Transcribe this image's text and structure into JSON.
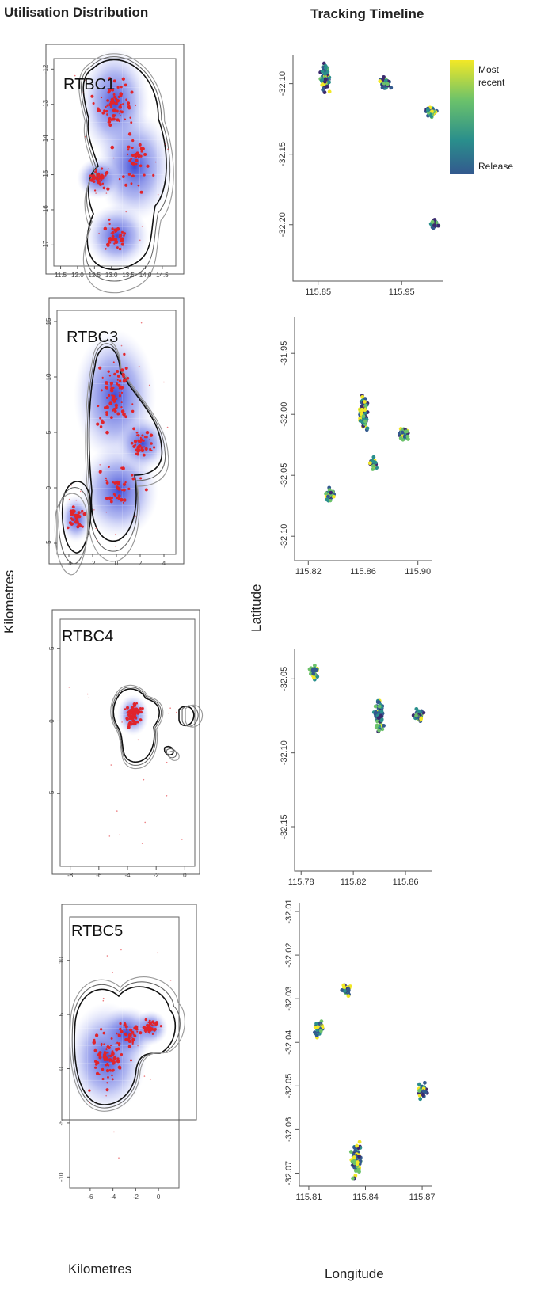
{
  "headers": {
    "left": "Utilisation Distribution",
    "right": "Tracking Timeline"
  },
  "axis_titles": {
    "left_y": "Kilometres",
    "left_x": "Kilometres",
    "right_y": "Latitude",
    "right_x": "Longitude"
  },
  "legend": {
    "top": "Most recent",
    "bottom": "Release",
    "colors": [
      "#f2e826",
      "#6cc26a",
      "#2a8f8c",
      "#33598e",
      "#3b2a6e"
    ]
  },
  "colors": {
    "kernel": "#3f4fd6",
    "points": "#e0242c",
    "contour": "#333333"
  },
  "chart_data": [
    {
      "type": "scatter",
      "panel": "utilisation-distribution",
      "title": "RTBC1",
      "xticks": [
        "11.5",
        "12.0",
        "12.5",
        "13.0",
        "13.5",
        "14.0",
        "14.5"
      ],
      "yticks": [
        "-12",
        "-13",
        "-14",
        "-15",
        "-16",
        "-17"
      ],
      "xlim": [
        11.3,
        14.9
      ],
      "ylim": [
        -17.6,
        -11.7
      ],
      "contours": [
        "50",
        "95",
        "99"
      ]
    },
    {
      "type": "scatter",
      "panel": "tracking-timeline",
      "xticks": [
        "115.85",
        "115.95"
      ],
      "yticks": [
        "-32.10",
        "-32.15",
        "-32.20"
      ],
      "xlim": [
        115.82,
        116.0
      ],
      "ylim": [
        -32.24,
        -32.08
      ],
      "clusters": [
        {
          "x": 115.858,
          "y": -32.095
        },
        {
          "x": 115.93,
          "y": -32.1
        },
        {
          "x": 115.985,
          "y": -32.12
        },
        {
          "x": 115.99,
          "y": -32.2
        }
      ]
    },
    {
      "type": "scatter",
      "panel": "utilisation-distribution",
      "title": "RTBC3",
      "xticks": [
        "-4",
        "-2",
        "0",
        "2",
        "4"
      ],
      "yticks": [
        "15",
        "10",
        "5",
        "0",
        "-5"
      ],
      "xlim": [
        -5,
        5
      ],
      "ylim": [
        -6,
        16
      ],
      "contours": [
        "50",
        "95",
        "99"
      ]
    },
    {
      "type": "scatter",
      "panel": "tracking-timeline",
      "xticks": [
        "115.82",
        "115.86",
        "115.90"
      ],
      "yticks": [
        "-31.95",
        "-32.00",
        "-32.05",
        "-32.10"
      ],
      "xlim": [
        115.81,
        115.91
      ],
      "ylim": [
        -32.12,
        -31.92
      ],
      "clusters": [
        {
          "x": 115.86,
          "y": -32.0
        },
        {
          "x": 115.867,
          "y": -32.04
        },
        {
          "x": 115.89,
          "y": -32.015
        },
        {
          "x": 115.835,
          "y": -32.065
        }
      ]
    },
    {
      "type": "scatter",
      "panel": "utilisation-distribution",
      "title": "RTBC4",
      "xticks": [
        "-8",
        "-6",
        "-4",
        "-2",
        "0"
      ],
      "yticks": [
        "5",
        "0",
        "-5"
      ],
      "xlim": [
        -8.7,
        0.7
      ],
      "ylim": [
        -10,
        7
      ],
      "contours": [
        "50",
        "95",
        "99"
      ]
    },
    {
      "type": "scatter",
      "panel": "tracking-timeline",
      "xticks": [
        "115.78",
        "115.82",
        "115.86"
      ],
      "yticks": [
        "-32.05",
        "-32.10",
        "-32.15"
      ],
      "xlim": [
        115.775,
        115.88
      ],
      "ylim": [
        -32.18,
        -32.03
      ],
      "clusters": [
        {
          "x": 115.84,
          "y": -32.075
        },
        {
          "x": 115.87,
          "y": -32.075
        },
        {
          "x": 115.79,
          "y": -32.045
        }
      ]
    },
    {
      "type": "scatter",
      "panel": "utilisation-distribution",
      "title": "RTBC5",
      "xticks": [
        "-6",
        "-4",
        "-2",
        "0"
      ],
      "yticks": [
        "10",
        "5",
        "0",
        "-5",
        "-10"
      ],
      "xlim": [
        -7.8,
        1.8
      ],
      "ylim": [
        -11,
        14
      ],
      "contours": [
        "50",
        "95",
        "99"
      ]
    },
    {
      "type": "scatter",
      "panel": "tracking-timeline",
      "xticks": [
        "115.81",
        "115.84",
        "115.87"
      ],
      "yticks": [
        "-32.01",
        "-32.02",
        "-32.03",
        "-32.04",
        "-32.05",
        "-32.06",
        "-32.07"
      ],
      "xlim": [
        115.805,
        115.875
      ],
      "ylim": [
        -32.073,
        -32.008
      ],
      "clusters": [
        {
          "x": 115.835,
          "y": -32.067
        },
        {
          "x": 115.815,
          "y": -32.037
        },
        {
          "x": 115.83,
          "y": -32.028
        },
        {
          "x": 115.87,
          "y": -32.051
        }
      ]
    }
  ]
}
